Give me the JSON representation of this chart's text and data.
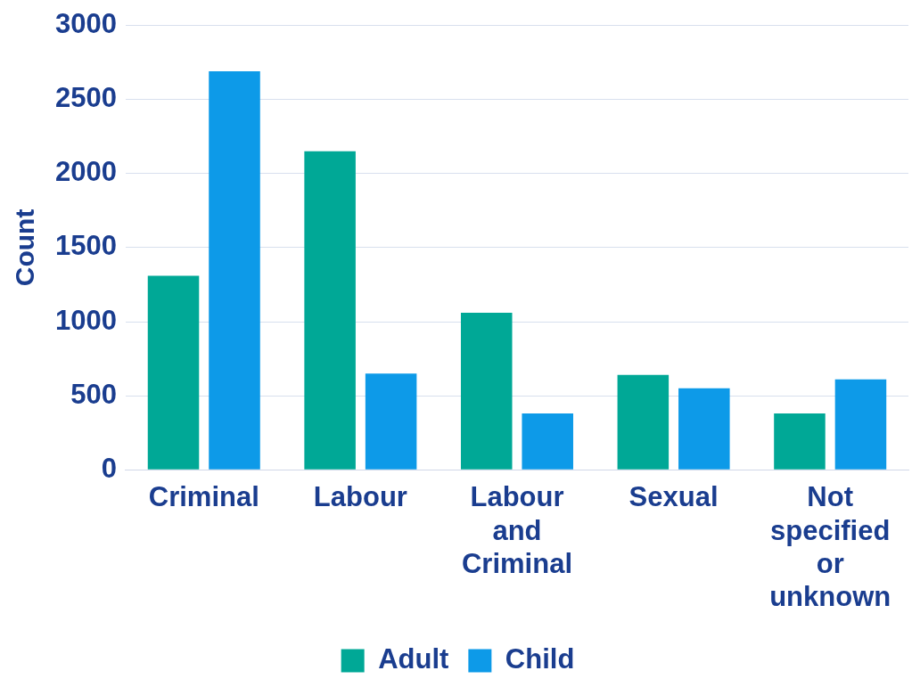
{
  "chart_data": {
    "type": "bar",
    "ylabel": "Count",
    "categories": [
      "Criminal",
      "Labour",
      "Labour and Criminal",
      "Sexual",
      "Not specified or unknown"
    ],
    "series": [
      {
        "name": "Adult",
        "color": "#00a896",
        "values": [
          1310,
          2150,
          1060,
          640,
          380
        ]
      },
      {
        "name": "Child",
        "color": "#0d9ae8",
        "values": [
          2690,
          650,
          380,
          550,
          610
        ]
      }
    ],
    "ylim": [
      0,
      3000
    ],
    "yticks": [
      0,
      500,
      1000,
      1500,
      2000,
      2500,
      3000
    ],
    "grid": "y",
    "legend": "bottom"
  }
}
